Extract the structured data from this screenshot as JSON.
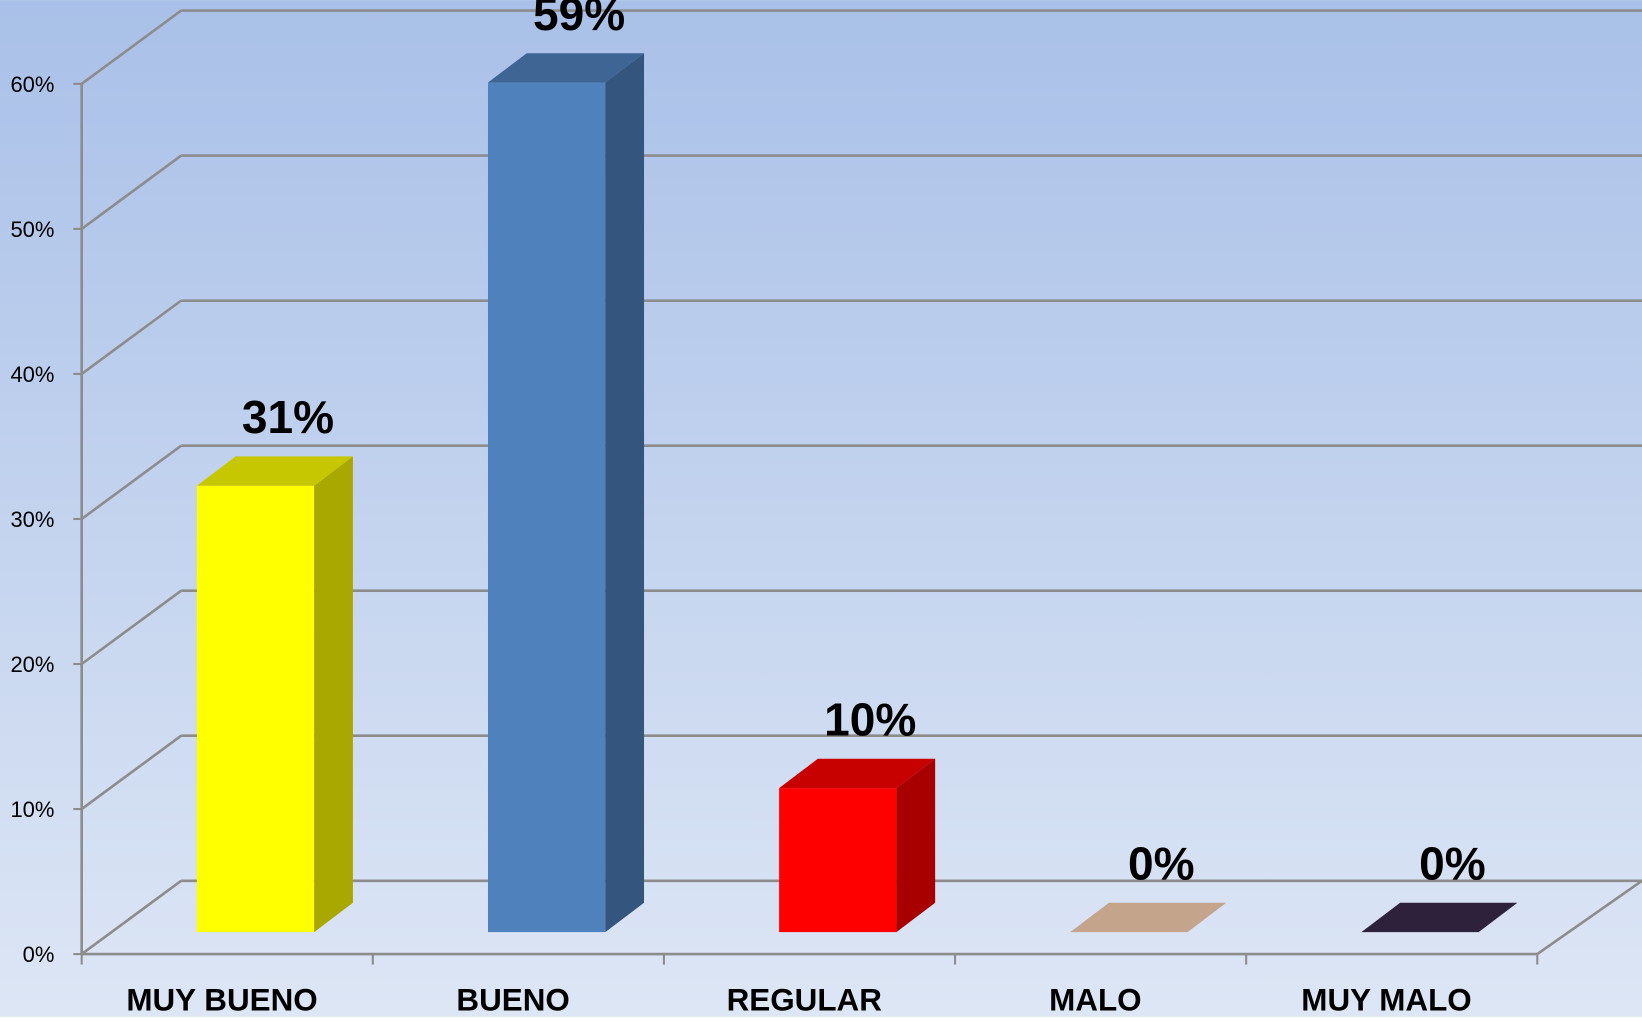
{
  "chart_data": {
    "type": "bar3d",
    "categories": [
      "MUY BUENO",
      "BUENO",
      "REGULAR",
      "MALO",
      "MUY MALO"
    ],
    "values": [
      31,
      59,
      10,
      0,
      0
    ],
    "value_labels": [
      "31%",
      "59%",
      "10%",
      "0%",
      "0%"
    ],
    "colors": [
      "#ffff00",
      "#4f81bd",
      "#ff0000",
      "#c4a48a",
      "#2e213b"
    ],
    "ylim": [
      0,
      60
    ],
    "yticks": [
      {
        "value": 0,
        "label": "0%"
      },
      {
        "value": 10,
        "label": "10%"
      },
      {
        "value": 20,
        "label": "20%"
      },
      {
        "value": 30,
        "label": "30%"
      },
      {
        "value": 40,
        "label": "40%"
      },
      {
        "value": 50,
        "label": "50%"
      },
      {
        "value": 60,
        "label": "60%"
      }
    ],
    "grid": true
  }
}
